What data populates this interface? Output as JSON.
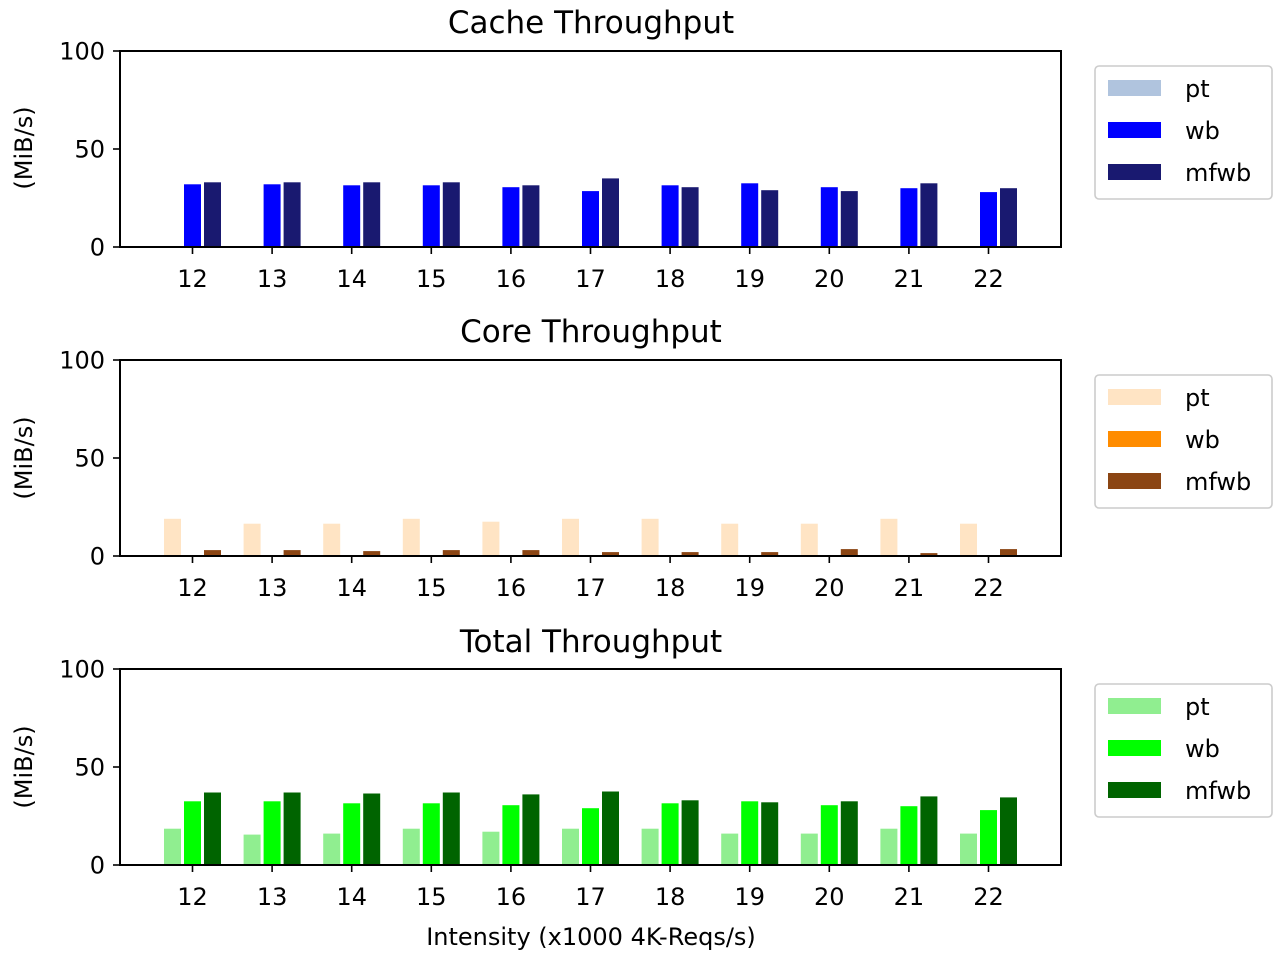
{
  "chart_data": [
    {
      "type": "bar",
      "title": "Cache Throughput",
      "xlabel": "",
      "ylabel": "(MiB/s)",
      "ylim": [
        0,
        100
      ],
      "yticks": [
        "0",
        "50",
        "100"
      ],
      "categories": [
        "12",
        "13",
        "14",
        "15",
        "16",
        "17",
        "18",
        "19",
        "20",
        "21",
        "22"
      ],
      "series": [
        {
          "name": "pt",
          "color": "#b0c4de",
          "values": [
            0,
            0,
            0,
            0,
            0,
            0,
            0,
            0,
            0,
            0,
            0
          ]
        },
        {
          "name": "wb",
          "color": "#0000ff",
          "values": [
            32,
            32,
            31.5,
            31.5,
            30.5,
            28.5,
            31.5,
            32.5,
            30.5,
            30,
            28
          ]
        },
        {
          "name": "mfwb",
          "color": "#191970",
          "values": [
            33,
            33,
            33,
            33,
            31.5,
            35,
            30.5,
            29,
            28.5,
            32.5,
            30
          ]
        }
      ],
      "legend_position": "right",
      "grid": false
    },
    {
      "type": "bar",
      "title": "Core Throughput",
      "xlabel": "",
      "ylabel": "(MiB/s)",
      "ylim": [
        0,
        100
      ],
      "yticks": [
        "0",
        "50",
        "100"
      ],
      "categories": [
        "12",
        "13",
        "14",
        "15",
        "16",
        "17",
        "18",
        "19",
        "20",
        "21",
        "22"
      ],
      "series": [
        {
          "name": "pt",
          "color": "#ffe4c4",
          "values": [
            19,
            16.5,
            16.5,
            19,
            17.5,
            19,
            19,
            16.5,
            16.5,
            19,
            16.5
          ]
        },
        {
          "name": "wb",
          "color": "#ff8c00",
          "values": [
            0,
            0,
            0,
            0,
            0,
            0,
            0,
            0,
            0,
            0,
            0
          ]
        },
        {
          "name": "mfwb",
          "color": "#8b4513",
          "values": [
            3,
            3,
            2.5,
            3,
            3,
            2,
            2,
            2,
            3.5,
            1.5,
            3.5
          ]
        }
      ],
      "legend_position": "right",
      "grid": false
    },
    {
      "type": "bar",
      "title": "Total Throughput",
      "xlabel": "Intensity (x1000 4K-Reqs/s)",
      "ylabel": "(MiB/s)",
      "ylim": [
        0,
        100
      ],
      "yticks": [
        "0",
        "50",
        "100"
      ],
      "categories": [
        "12",
        "13",
        "14",
        "15",
        "16",
        "17",
        "18",
        "19",
        "20",
        "21",
        "22"
      ],
      "series": [
        {
          "name": "pt",
          "color": "#90ee90",
          "values": [
            18.5,
            15.5,
            16,
            18.5,
            17,
            18.5,
            18.5,
            16,
            16,
            18.5,
            16
          ]
        },
        {
          "name": "wb",
          "color": "#00ff00",
          "values": [
            32.5,
            32.5,
            31.5,
            31.5,
            30.5,
            29,
            31.5,
            32.5,
            30.5,
            30,
            28
          ]
        },
        {
          "name": "mfwb",
          "color": "#006400",
          "values": [
            37,
            37,
            36.5,
            37,
            36,
            37.5,
            33,
            32,
            32.5,
            35,
            34.5
          ]
        }
      ],
      "legend_position": "right",
      "grid": false
    }
  ]
}
